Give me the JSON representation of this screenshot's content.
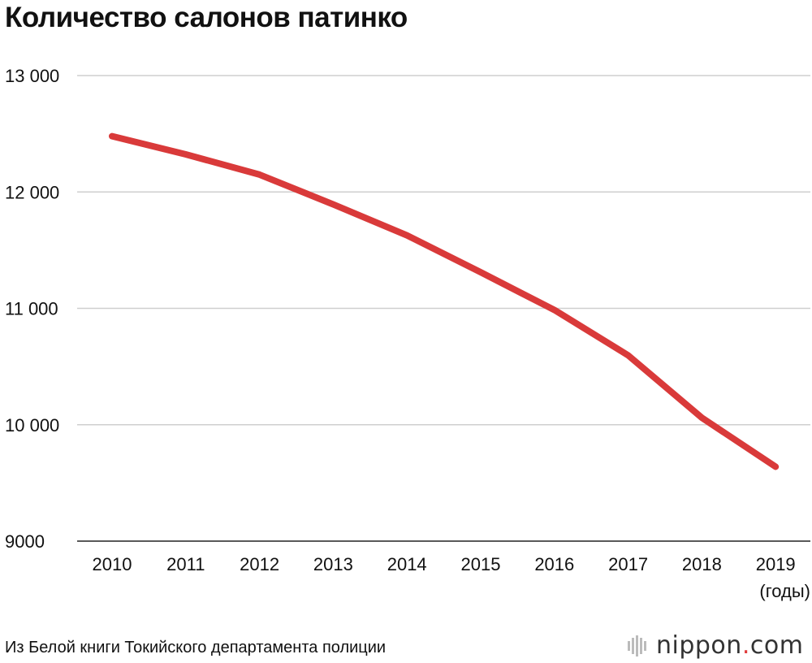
{
  "chart_data": {
    "type": "line",
    "title": "Количество салонов патинко",
    "x": [
      "2010",
      "2011",
      "2012",
      "2013",
      "2014",
      "2015",
      "2016",
      "2017",
      "2018",
      "2019"
    ],
    "xlabel": "(годы)",
    "ylabel": "",
    "ylim": [
      9000,
      13000
    ],
    "yticks": [
      9000,
      10000,
      11000,
      12000,
      13000
    ],
    "ytick_labels": [
      "9000",
      "10 000",
      "11 000",
      "12 000",
      "13 000"
    ],
    "grid": true,
    "series": [
      {
        "color": "#d93a3a",
        "values": [
          12479,
          12323,
          12149,
          11893,
          11627,
          11310,
          10986,
          10596,
          10060,
          9639
        ]
      }
    ]
  },
  "source": "Из Белой книги Токийского департамента полиции",
  "logo": {
    "name": "nippon",
    "dot": ".",
    "suffix": "com",
    "icon": "nippon-bars-icon"
  }
}
